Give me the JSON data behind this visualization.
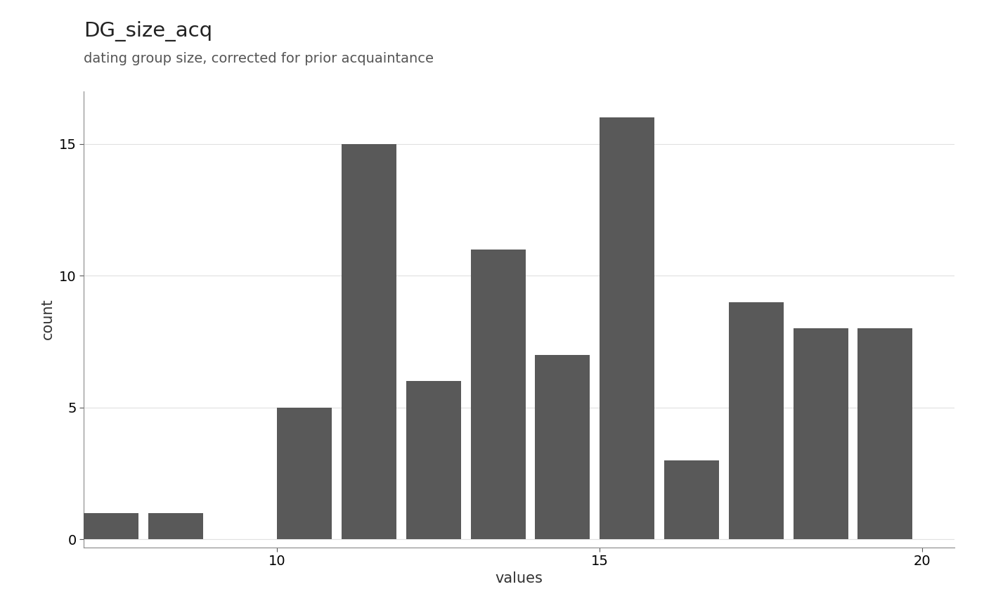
{
  "title": "DG_size_acq",
  "subtitle": "dating group size, corrected for prior acquaintance",
  "xlabel": "values",
  "ylabel": "count",
  "bar_color": "#595959",
  "background_color": "#ffffff",
  "plot_background": "#ffffff",
  "grid_color": "#e0e0e0",
  "xlim": [
    7.0,
    20.5
  ],
  "ylim": [
    -0.3,
    17.0
  ],
  "xticks": [
    10,
    15,
    20
  ],
  "yticks": [
    0,
    5,
    10,
    15
  ],
  "bar_lefts": [
    7,
    8,
    10,
    11,
    12,
    13,
    14,
    15,
    16,
    17,
    18,
    19
  ],
  "bar_heights": [
    1,
    1,
    5,
    15,
    6,
    11,
    7,
    16,
    3,
    9,
    8,
    8
  ],
  "bar_width": 0.85,
  "title_fontsize": 21,
  "subtitle_fontsize": 14,
  "axis_label_fontsize": 15,
  "tick_fontsize": 14
}
